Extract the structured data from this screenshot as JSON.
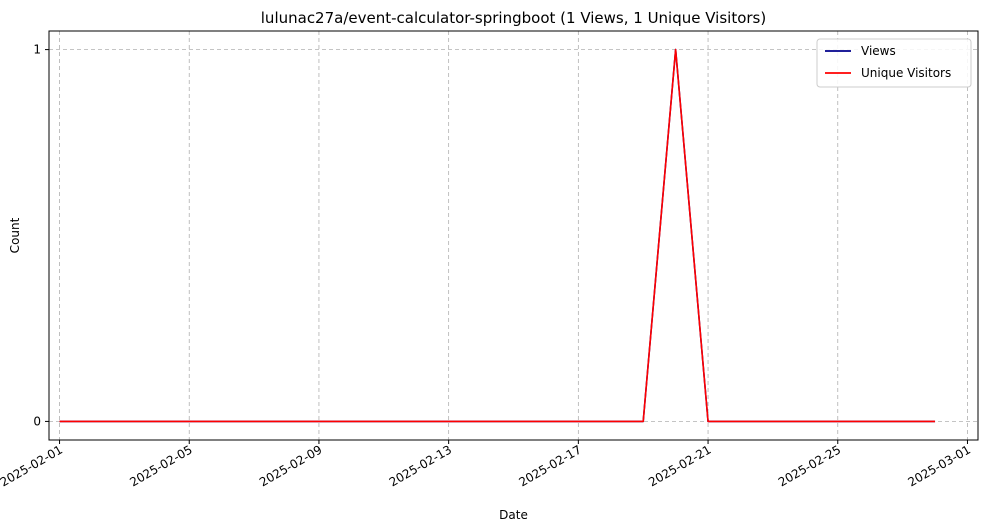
{
  "chart_data": {
    "type": "line",
    "title": "lulunac27a/event-calculator-springboot (1 Views, 1 Unique Visitors)",
    "xlabel": "Date",
    "ylabel": "Count",
    "x": [
      "2025-02-01",
      "2025-02-02",
      "2025-02-03",
      "2025-02-04",
      "2025-02-05",
      "2025-02-06",
      "2025-02-07",
      "2025-02-08",
      "2025-02-09",
      "2025-02-10",
      "2025-02-11",
      "2025-02-12",
      "2025-02-13",
      "2025-02-14",
      "2025-02-15",
      "2025-02-16",
      "2025-02-17",
      "2025-02-18",
      "2025-02-19",
      "2025-02-20",
      "2025-02-21",
      "2025-02-22",
      "2025-02-23",
      "2025-02-24",
      "2025-02-25",
      "2025-02-26",
      "2025-02-27",
      "2025-02-28"
    ],
    "series": [
      {
        "name": "Views",
        "color": "#00008b",
        "values": [
          0,
          0,
          0,
          0,
          0,
          0,
          0,
          0,
          0,
          0,
          0,
          0,
          0,
          0,
          0,
          0,
          0,
          0,
          0,
          1,
          0,
          0,
          0,
          0,
          0,
          0,
          0,
          0
        ]
      },
      {
        "name": "Unique Visitors",
        "color": "#ff0000",
        "values": [
          0,
          0,
          0,
          0,
          0,
          0,
          0,
          0,
          0,
          0,
          0,
          0,
          0,
          0,
          0,
          0,
          0,
          0,
          0,
          1,
          0,
          0,
          0,
          0,
          0,
          0,
          0,
          0
        ]
      }
    ],
    "x_ticks": [
      "2025-02-01",
      "2025-02-05",
      "2025-02-09",
      "2025-02-13",
      "2025-02-17",
      "2025-02-21",
      "2025-02-25",
      "2025-03-01"
    ],
    "y_ticks": [
      0,
      1
    ],
    "xlim": [
      "2025-01-31T16:12",
      "2025-03-01T07:48"
    ],
    "ylim": [
      -0.05,
      1.05
    ],
    "grid": true,
    "legend_position": "top-right"
  }
}
